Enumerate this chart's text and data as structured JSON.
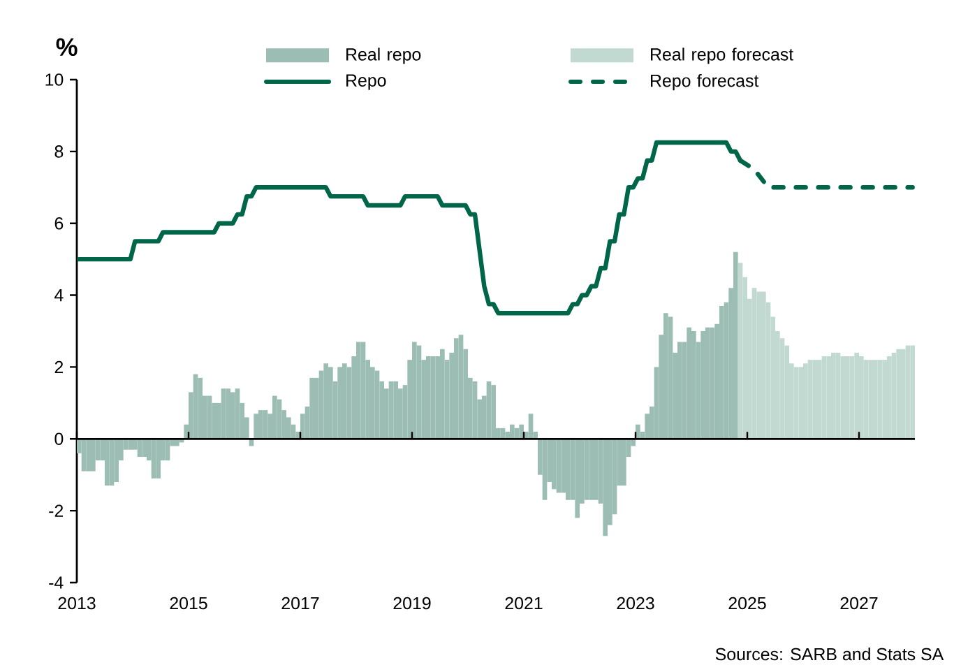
{
  "chart_data": {
    "type": "bar",
    "ylabel": "%",
    "xlim": [
      "2013",
      "2028"
    ],
    "xticks": [
      "2013",
      "2015",
      "2017",
      "2019",
      "2021",
      "2023",
      "2025",
      "2027"
    ],
    "ylim": [
      -4,
      10
    ],
    "yticks": [
      -4,
      -2,
      0,
      2,
      4,
      6,
      8,
      10
    ],
    "legend": "top",
    "annotations": [
      "Sources: SARB and Stats SA"
    ],
    "series": [
      {
        "name": "Real repo",
        "color": "#9bbdb3",
        "x": [
          "2013-01",
          "2013-02",
          "2013-03",
          "2013-04",
          "2013-05",
          "2013-06",
          "2013-07",
          "2013-08",
          "2013-09",
          "2013-10",
          "2013-11",
          "2013-12",
          "2014-01",
          "2014-02",
          "2014-03",
          "2014-04",
          "2014-05",
          "2014-06",
          "2014-07",
          "2014-08",
          "2014-09",
          "2014-10",
          "2014-11",
          "2014-12",
          "2015-01",
          "2015-02",
          "2015-03",
          "2015-04",
          "2015-05",
          "2015-06",
          "2015-07",
          "2015-08",
          "2015-09",
          "2015-10",
          "2015-11",
          "2015-12",
          "2016-01",
          "2016-02",
          "2016-03",
          "2016-04",
          "2016-05",
          "2016-06",
          "2016-07",
          "2016-08",
          "2016-09",
          "2016-10",
          "2016-11",
          "2016-12",
          "2017-01",
          "2017-02",
          "2017-03",
          "2017-04",
          "2017-05",
          "2017-06",
          "2017-07",
          "2017-08",
          "2017-09",
          "2017-10",
          "2017-11",
          "2017-12",
          "2018-01",
          "2018-02",
          "2018-03",
          "2018-04",
          "2018-05",
          "2018-06",
          "2018-07",
          "2018-08",
          "2018-09",
          "2018-10",
          "2018-11",
          "2018-12",
          "2019-01",
          "2019-02",
          "2019-03",
          "2019-04",
          "2019-05",
          "2019-06",
          "2019-07",
          "2019-08",
          "2019-09",
          "2019-10",
          "2019-11",
          "2019-12",
          "2020-01",
          "2020-02",
          "2020-03",
          "2020-04",
          "2020-05",
          "2020-06",
          "2020-07",
          "2020-08",
          "2020-09",
          "2020-10",
          "2020-11",
          "2020-12",
          "2021-01",
          "2021-02",
          "2021-03",
          "2021-04",
          "2021-05",
          "2021-06",
          "2021-07",
          "2021-08",
          "2021-09",
          "2021-10",
          "2021-11",
          "2021-12",
          "2022-01",
          "2022-02",
          "2022-03",
          "2022-04",
          "2022-05",
          "2022-06",
          "2022-07",
          "2022-08",
          "2022-09",
          "2022-10",
          "2022-11",
          "2022-12",
          "2023-01",
          "2023-02",
          "2023-03",
          "2023-04",
          "2023-05",
          "2023-06",
          "2023-07",
          "2023-08",
          "2023-09",
          "2023-10",
          "2023-11",
          "2023-12",
          "2024-01",
          "2024-02",
          "2024-03",
          "2024-04",
          "2024-05",
          "2024-06",
          "2024-07",
          "2024-08",
          "2024-09",
          "2024-10"
        ],
        "values": [
          -0.4,
          -0.9,
          -0.9,
          -0.9,
          -0.6,
          -0.6,
          -1.3,
          -1.3,
          -1.2,
          -0.6,
          -0.3,
          -0.3,
          -0.3,
          -0.5,
          -0.5,
          -0.6,
          -1.1,
          -1.1,
          -0.6,
          -0.6,
          -0.2,
          -0.2,
          -0.1,
          0.4,
          1.3,
          1.8,
          1.7,
          1.2,
          1.2,
          1.0,
          1.0,
          1.4,
          1.4,
          1.3,
          1.4,
          1.0,
          0.6,
          -0.2,
          0.7,
          0.8,
          0.8,
          0.7,
          1.2,
          1.1,
          0.8,
          0.6,
          0.4,
          0.2,
          0.7,
          0.9,
          1.7,
          1.7,
          1.9,
          2.1,
          2.0,
          1.6,
          2.0,
          2.1,
          2.0,
          2.3,
          2.7,
          2.7,
          2.2,
          2.0,
          1.9,
          1.6,
          1.4,
          1.6,
          1.6,
          1.4,
          1.5,
          2.2,
          2.7,
          2.6,
          2.2,
          2.3,
          2.3,
          2.3,
          2.5,
          2.2,
          2.4,
          2.8,
          2.9,
          2.5,
          1.7,
          1.6,
          1.1,
          1.2,
          1.6,
          1.5,
          0.3,
          0.3,
          0.2,
          0.4,
          0.3,
          0.4,
          0.2,
          0.7,
          0.2,
          -1.0,
          -1.7,
          -1.2,
          -1.4,
          -1.5,
          -1.5,
          -1.7,
          -1.7,
          -2.2,
          -1.8,
          -1.7,
          -1.7,
          -1.7,
          -1.8,
          -2.7,
          -2.4,
          -2.1,
          -1.3,
          -1.3,
          -0.5,
          -0.2,
          0.4,
          0.2,
          0.7,
          0.9,
          2.0,
          2.9,
          3.5,
          3.4,
          2.4,
          2.7,
          2.7,
          3.1,
          3.0,
          2.7,
          3.0,
          3.1,
          3.1,
          3.2,
          3.7,
          3.8,
          4.2,
          5.2
        ]
      },
      {
        "name": "Real repo forecast",
        "color": "#c2d9d2",
        "x": [
          "2024-11",
          "2024-12",
          "2025-01",
          "2025-02",
          "2025-03",
          "2025-04",
          "2025-05",
          "2025-06",
          "2025-07",
          "2025-08",
          "2025-09",
          "2025-10",
          "2025-11",
          "2025-12",
          "2026-01",
          "2026-02",
          "2026-03",
          "2026-04",
          "2026-05",
          "2026-06",
          "2026-07",
          "2026-08",
          "2026-09",
          "2026-10",
          "2026-11",
          "2026-12",
          "2027-01",
          "2027-02",
          "2027-03",
          "2027-04",
          "2027-05",
          "2027-06",
          "2027-07",
          "2027-08",
          "2027-09",
          "2027-10",
          "2027-11",
          "2027-12"
        ],
        "values": [
          4.9,
          4.5,
          3.9,
          4.2,
          4.1,
          4.1,
          3.8,
          3.4,
          3.0,
          2.8,
          2.6,
          2.1,
          2.0,
          2.0,
          2.1,
          2.2,
          2.2,
          2.2,
          2.3,
          2.3,
          2.4,
          2.4,
          2.3,
          2.3,
          2.3,
          2.4,
          2.3,
          2.2,
          2.2,
          2.2,
          2.2,
          2.2,
          2.3,
          2.4,
          2.5,
          2.5,
          2.6,
          2.6
        ]
      },
      {
        "name": "Repo",
        "type": "line",
        "line_style": "solid",
        "color": "#00664a",
        "x": [
          "2013-01",
          "2013-12",
          "2014-01",
          "2014-06",
          "2014-07",
          "2015-06",
          "2015-07",
          "2015-10",
          "2015-11",
          "2015-12",
          "2016-01",
          "2016-02",
          "2016-03",
          "2017-06",
          "2017-07",
          "2018-02",
          "2018-03",
          "2018-10",
          "2018-11",
          "2019-06",
          "2019-07",
          "2019-12",
          "2020-01",
          "2020-02",
          "2020-03",
          "2020-04",
          "2020-05",
          "2020-06",
          "2020-07",
          "2021-10",
          "2021-11",
          "2021-12",
          "2022-01",
          "2022-02",
          "2022-03",
          "2022-04",
          "2022-05",
          "2022-06",
          "2022-07",
          "2022-08",
          "2022-09",
          "2022-10",
          "2022-11",
          "2022-12",
          "2023-01",
          "2023-02",
          "2023-03",
          "2023-04",
          "2023-05",
          "2024-08",
          "2024-09",
          "2024-10",
          "2024-11"
        ],
        "values": [
          5,
          5,
          5.5,
          5.5,
          5.75,
          5.75,
          6,
          6,
          6.25,
          6.25,
          6.75,
          6.75,
          7,
          7,
          6.75,
          6.75,
          6.5,
          6.5,
          6.75,
          6.75,
          6.5,
          6.5,
          6.25,
          6.25,
          5.25,
          4.25,
          3.75,
          3.75,
          3.5,
          3.5,
          3.75,
          3.75,
          4,
          4,
          4.25,
          4.25,
          4.75,
          4.75,
          5.5,
          5.5,
          6.25,
          6.25,
          7,
          7,
          7.25,
          7.25,
          7.75,
          7.75,
          8.25,
          8.25,
          8,
          8,
          7.75
        ]
      },
      {
        "name": "Repo forecast",
        "type": "line",
        "line_style": "dashed",
        "color": "#00664a",
        "x": [
          "2024-11",
          "2025-02",
          "2025-05",
          "2027-12"
        ],
        "values": [
          7.75,
          7.5,
          7,
          7
        ]
      }
    ]
  }
}
